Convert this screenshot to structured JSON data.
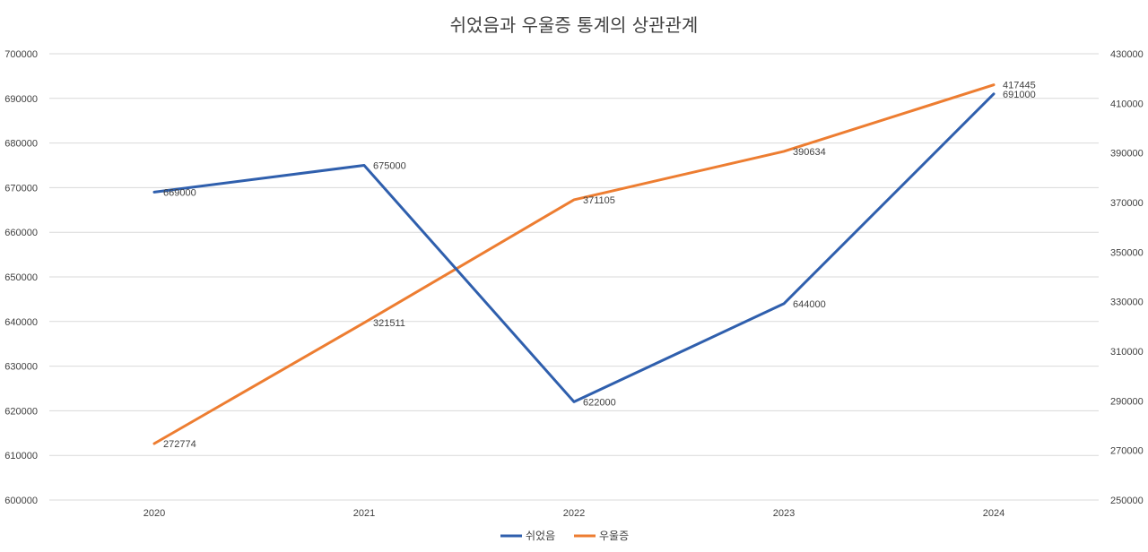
{
  "chart_data": {
    "type": "line",
    "title": "쉬었음과 우울증 통계의 상관관계",
    "categories": [
      "2020",
      "2021",
      "2022",
      "2023",
      "2024"
    ],
    "xlabel": "",
    "ylabel": "",
    "y_left": {
      "ylim": [
        600000,
        700000
      ],
      "ticks": [
        600000,
        610000,
        620000,
        630000,
        640000,
        650000,
        660000,
        670000,
        680000,
        690000,
        700000
      ]
    },
    "y_right": {
      "ylim": [
        250000,
        430000
      ],
      "ticks": [
        250000,
        270000,
        290000,
        310000,
        330000,
        350000,
        370000,
        390000,
        410000,
        430000
      ]
    },
    "grid": true,
    "legend": "bottom-center",
    "series": [
      {
        "name": "쉬었음",
        "axis": "left",
        "color": "#2f5fad",
        "values": [
          669000,
          675000,
          622000,
          644000,
          691000
        ],
        "labels": [
          "669000",
          "675000",
          "622000",
          "644000",
          "691000"
        ]
      },
      {
        "name": "우울증",
        "axis": "right",
        "color": "#ed7d31",
        "values": [
          272774,
          321511,
          371105,
          390634,
          417445
        ],
        "labels": [
          "272774",
          "321511",
          "371105",
          "390634",
          "417445"
        ]
      }
    ]
  }
}
